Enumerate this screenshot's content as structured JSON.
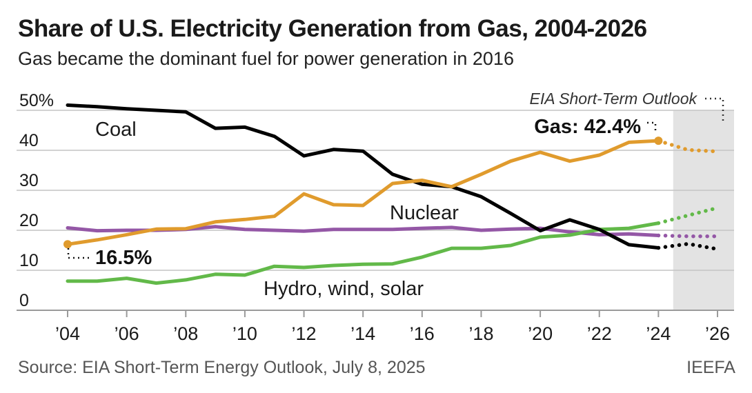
{
  "header": {
    "title": "Share of U.S. Electricity Generation from Gas, 2004-2026",
    "subtitle": "Gas became the dominant fuel for power generation in 2016"
  },
  "footer": {
    "source": "Source: EIA Short-Term Energy Outlook, July 8, 2025",
    "brand": "IEEFA"
  },
  "chart_data": {
    "type": "line",
    "title": "Share of U.S. Electricity Generation from Gas, 2004-2026",
    "subtitle": "Gas became the dominant fuel for power generation in 2016",
    "xlabel": "",
    "ylabel": "",
    "xlim": [
      2004,
      2026
    ],
    "ylim": [
      0,
      50
    ],
    "y_ticks": [
      {
        "value": 50,
        "label": "50%"
      },
      {
        "value": 40,
        "label": "40"
      },
      {
        "value": 30,
        "label": "30"
      },
      {
        "value": 20,
        "label": "20"
      },
      {
        "value": 10,
        "label": "10"
      },
      {
        "value": 0,
        "label": "0"
      }
    ],
    "x_ticks": [
      {
        "value": 2004,
        "label": "’04"
      },
      {
        "value": 2006,
        "label": "’06"
      },
      {
        "value": 2008,
        "label": "’08"
      },
      {
        "value": 2010,
        "label": "’10"
      },
      {
        "value": 2012,
        "label": "’12"
      },
      {
        "value": 2014,
        "label": "’14"
      },
      {
        "value": 2016,
        "label": "’16"
      },
      {
        "value": 2018,
        "label": "’18"
      },
      {
        "value": 2020,
        "label": "’20"
      },
      {
        "value": 2022,
        "label": "’22"
      },
      {
        "value": 2024,
        "label": "’24"
      },
      {
        "value": 2026,
        "label": "’26"
      }
    ],
    "grid": true,
    "forecast": {
      "start": 2024.5,
      "end": 2026,
      "label": "EIA Short-Term Outlook",
      "shading": "#e3e3e3"
    },
    "series": [
      {
        "name": "Coal",
        "color": "#000000",
        "x": [
          2004,
          2005,
          2006,
          2007,
          2008,
          2009,
          2010,
          2011,
          2012,
          2013,
          2014,
          2015,
          2016,
          2017,
          2018,
          2019,
          2020,
          2021,
          2022,
          2023,
          2024
        ],
        "values": [
          51.3,
          50.9,
          50.4,
          50.0,
          49.6,
          45.5,
          45.8,
          43.5,
          38.6,
          40.2,
          39.8,
          34.0,
          31.5,
          30.9,
          28.4,
          24.2,
          19.9,
          22.6,
          20.2,
          16.4,
          15.6
        ],
        "forecast_x": [
          2024,
          2025,
          2026
        ],
        "forecast_values": [
          15.6,
          16.6,
          15.3
        ]
      },
      {
        "name": "Gas",
        "color": "#e09b2d",
        "x": [
          2004,
          2005,
          2006,
          2007,
          2008,
          2009,
          2010,
          2011,
          2012,
          2013,
          2014,
          2015,
          2016,
          2017,
          2018,
          2019,
          2020,
          2021,
          2022,
          2023,
          2024
        ],
        "values": [
          16.5,
          17.6,
          18.9,
          20.3,
          20.4,
          22.1,
          22.7,
          23.5,
          29.1,
          26.4,
          26.2,
          31.7,
          32.5,
          30.9,
          34.0,
          37.3,
          39.5,
          37.3,
          38.8,
          42.0,
          42.4
        ],
        "forecast_x": [
          2024,
          2025,
          2026
        ],
        "forecast_values": [
          42.4,
          40.1,
          39.7
        ],
        "annotation": "Gas: 42.4%",
        "start_label": "16.5%"
      },
      {
        "name": "Nuclear",
        "color": "#9457a6",
        "x": [
          2004,
          2005,
          2006,
          2007,
          2008,
          2009,
          2010,
          2011,
          2012,
          2013,
          2014,
          2015,
          2016,
          2017,
          2018,
          2019,
          2020,
          2021,
          2022,
          2023,
          2024
        ],
        "values": [
          20.6,
          19.9,
          20.0,
          20.0,
          20.2,
          20.9,
          20.2,
          20.0,
          19.8,
          20.2,
          20.2,
          20.2,
          20.5,
          20.7,
          20.0,
          20.3,
          20.5,
          19.6,
          18.9,
          19.1,
          18.7
        ],
        "forecast_x": [
          2024,
          2025,
          2026
        ],
        "forecast_values": [
          18.7,
          18.5,
          18.5
        ]
      },
      {
        "name": "Hydro, wind, solar",
        "color": "#62b949",
        "x": [
          2004,
          2005,
          2006,
          2007,
          2008,
          2009,
          2010,
          2011,
          2012,
          2013,
          2014,
          2015,
          2016,
          2017,
          2018,
          2019,
          2020,
          2021,
          2022,
          2023,
          2024
        ],
        "values": [
          7.3,
          7.3,
          8.0,
          6.8,
          7.6,
          9.0,
          8.8,
          11.0,
          10.7,
          11.2,
          11.5,
          11.6,
          13.3,
          15.5,
          15.5,
          16.2,
          18.3,
          18.8,
          20.2,
          20.5,
          21.8
        ],
        "forecast_x": [
          2024,
          2025,
          2026
        ],
        "forecast_values": [
          21.8,
          23.7,
          25.6
        ]
      }
    ]
  }
}
